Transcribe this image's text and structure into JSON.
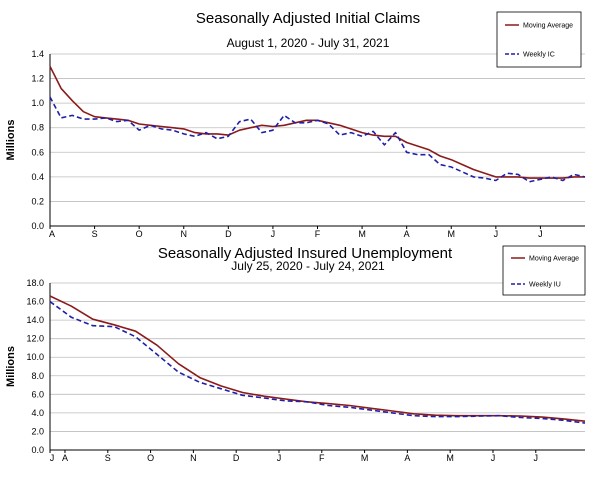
{
  "colors": {
    "moving_average": "#8b1a1a",
    "weekly": "#1f1fa8"
  },
  "chart_data": [
    {
      "type": "line",
      "title": "Seasonally Adjusted Initial Claims",
      "subtitle": "August 1, 2020 - July 31, 2021",
      "ylabel": "Millions",
      "xlabel": "",
      "ylim": [
        0,
        1.4
      ],
      "yticks": [
        "0.0",
        "0.2",
        "0.4",
        "0.6",
        "0.8",
        "1.0",
        "1.2",
        "1.4"
      ],
      "xticks": [
        {
          "label": "A",
          "x": 0
        },
        {
          "label": "S",
          "x": 1
        },
        {
          "label": "O",
          "x": 2
        },
        {
          "label": "N",
          "x": 3
        },
        {
          "label": "D",
          "x": 4
        },
        {
          "label": "J",
          "x": 5
        },
        {
          "label": "F",
          "x": 6
        },
        {
          "label": "M",
          "x": 7
        },
        {
          "label": "A",
          "x": 8
        },
        {
          "label": "M",
          "x": 9
        },
        {
          "label": "J",
          "x": 10
        },
        {
          "label": "J",
          "x": 11
        }
      ],
      "xlim": [
        0,
        12
      ],
      "grid": true,
      "legend": "top-right",
      "series": [
        {
          "name": "Moving Average",
          "style": "solid",
          "x": [
            0,
            0.25,
            0.5,
            0.75,
            1,
            1.25,
            1.5,
            1.75,
            2,
            2.25,
            2.5,
            2.75,
            3,
            3.25,
            3.5,
            3.75,
            4,
            4.25,
            4.5,
            4.75,
            5,
            5.25,
            5.5,
            5.75,
            6,
            6.25,
            6.5,
            6.75,
            7,
            7.25,
            7.5,
            7.75,
            8,
            8.25,
            8.5,
            8.75,
            9,
            9.25,
            9.5,
            9.75,
            10,
            10.25,
            10.5,
            10.75,
            11,
            11.25,
            11.5,
            11.75,
            12
          ],
          "values": [
            1.3,
            1.12,
            1.02,
            0.93,
            0.89,
            0.88,
            0.87,
            0.86,
            0.83,
            0.82,
            0.81,
            0.8,
            0.79,
            0.76,
            0.75,
            0.75,
            0.74,
            0.78,
            0.8,
            0.82,
            0.81,
            0.82,
            0.84,
            0.86,
            0.86,
            0.84,
            0.82,
            0.79,
            0.76,
            0.74,
            0.73,
            0.73,
            0.68,
            0.65,
            0.62,
            0.57,
            0.54,
            0.5,
            0.46,
            0.43,
            0.4,
            0.4,
            0.4,
            0.39,
            0.39,
            0.39,
            0.39,
            0.4,
            0.4
          ]
        },
        {
          "name": "Weekly IC",
          "style": "dashed",
          "x": [
            0,
            0.25,
            0.5,
            0.75,
            1,
            1.25,
            1.5,
            1.75,
            2,
            2.25,
            2.5,
            2.75,
            3,
            3.25,
            3.5,
            3.75,
            4,
            4.25,
            4.5,
            4.75,
            5,
            5.25,
            5.5,
            5.75,
            6,
            6.25,
            6.5,
            6.75,
            7,
            7.25,
            7.5,
            7.75,
            8,
            8.25,
            8.5,
            8.75,
            9,
            9.25,
            9.5,
            9.75,
            10,
            10.25,
            10.5,
            10.75,
            11,
            11.25,
            11.5,
            11.75,
            12
          ],
          "values": [
            1.05,
            0.88,
            0.9,
            0.87,
            0.87,
            0.88,
            0.85,
            0.86,
            0.78,
            0.82,
            0.79,
            0.78,
            0.75,
            0.73,
            0.76,
            0.71,
            0.73,
            0.85,
            0.87,
            0.76,
            0.78,
            0.9,
            0.84,
            0.84,
            0.86,
            0.83,
            0.74,
            0.76,
            0.73,
            0.77,
            0.66,
            0.76,
            0.6,
            0.58,
            0.58,
            0.5,
            0.48,
            0.44,
            0.4,
            0.39,
            0.37,
            0.43,
            0.42,
            0.36,
            0.38,
            0.4,
            0.37,
            0.42,
            0.4
          ]
        }
      ]
    },
    {
      "type": "line",
      "title": "Seasonally Adjusted Insured Unemployment",
      "subtitle": "July 25, 2020 - July 24, 2021",
      "ylabel": "Millions",
      "xlabel": "",
      "ylim": [
        0,
        18
      ],
      "yticks": [
        "0.0",
        "2.0",
        "4.0",
        "6.0",
        "8.0",
        "10.0",
        "12.0",
        "14.0",
        "16.0",
        "18.0"
      ],
      "xticks": [
        {
          "label": "J",
          "x": 0
        },
        {
          "label": "A",
          "x": 0.35
        },
        {
          "label": "S",
          "x": 1.35
        },
        {
          "label": "O",
          "x": 2.35
        },
        {
          "label": "N",
          "x": 3.35
        },
        {
          "label": "D",
          "x": 4.35
        },
        {
          "label": "J",
          "x": 5.35
        },
        {
          "label": "F",
          "x": 6.35
        },
        {
          "label": "M",
          "x": 7.35
        },
        {
          "label": "A",
          "x": 8.35
        },
        {
          "label": "M",
          "x": 9.35
        },
        {
          "label": "J",
          "x": 10.35
        },
        {
          "label": "J",
          "x": 11.35
        }
      ],
      "xlim": [
        0,
        12.5
      ],
      "grid": true,
      "legend": "top-right",
      "series": [
        {
          "name": "Moving Average",
          "style": "solid",
          "x": [
            0,
            0.5,
            1,
            1.5,
            2,
            2.5,
            3,
            3.5,
            4,
            4.5,
            5,
            5.5,
            6,
            6.5,
            7,
            7.5,
            8,
            8.5,
            9,
            9.5,
            10,
            10.5,
            11,
            11.5,
            12,
            12.5
          ],
          "values": [
            16.6,
            15.5,
            14.1,
            13.5,
            12.8,
            11.3,
            9.3,
            7.8,
            6.9,
            6.2,
            5.8,
            5.5,
            5.2,
            5.0,
            4.8,
            4.5,
            4.2,
            3.9,
            3.75,
            3.7,
            3.7,
            3.7,
            3.65,
            3.55,
            3.35,
            3.1
          ],
          "extra_points": []
        },
        {
          "name": "Weekly IU",
          "style": "dashed",
          "x": [
            0,
            0.5,
            1,
            1.5,
            2,
            2.5,
            3,
            3.5,
            4,
            4.5,
            5,
            5.5,
            6,
            6.5,
            7,
            7.5,
            8,
            8.5,
            9,
            9.5,
            10,
            10.5,
            11,
            11.5,
            12,
            12.5
          ],
          "values": [
            16.0,
            14.3,
            13.4,
            13.3,
            12.2,
            10.3,
            8.4,
            7.3,
            6.6,
            5.9,
            5.6,
            5.3,
            5.2,
            4.8,
            4.6,
            4.3,
            4.0,
            3.7,
            3.6,
            3.6,
            3.65,
            3.7,
            3.5,
            3.4,
            3.2,
            2.9
          ]
        }
      ]
    }
  ]
}
